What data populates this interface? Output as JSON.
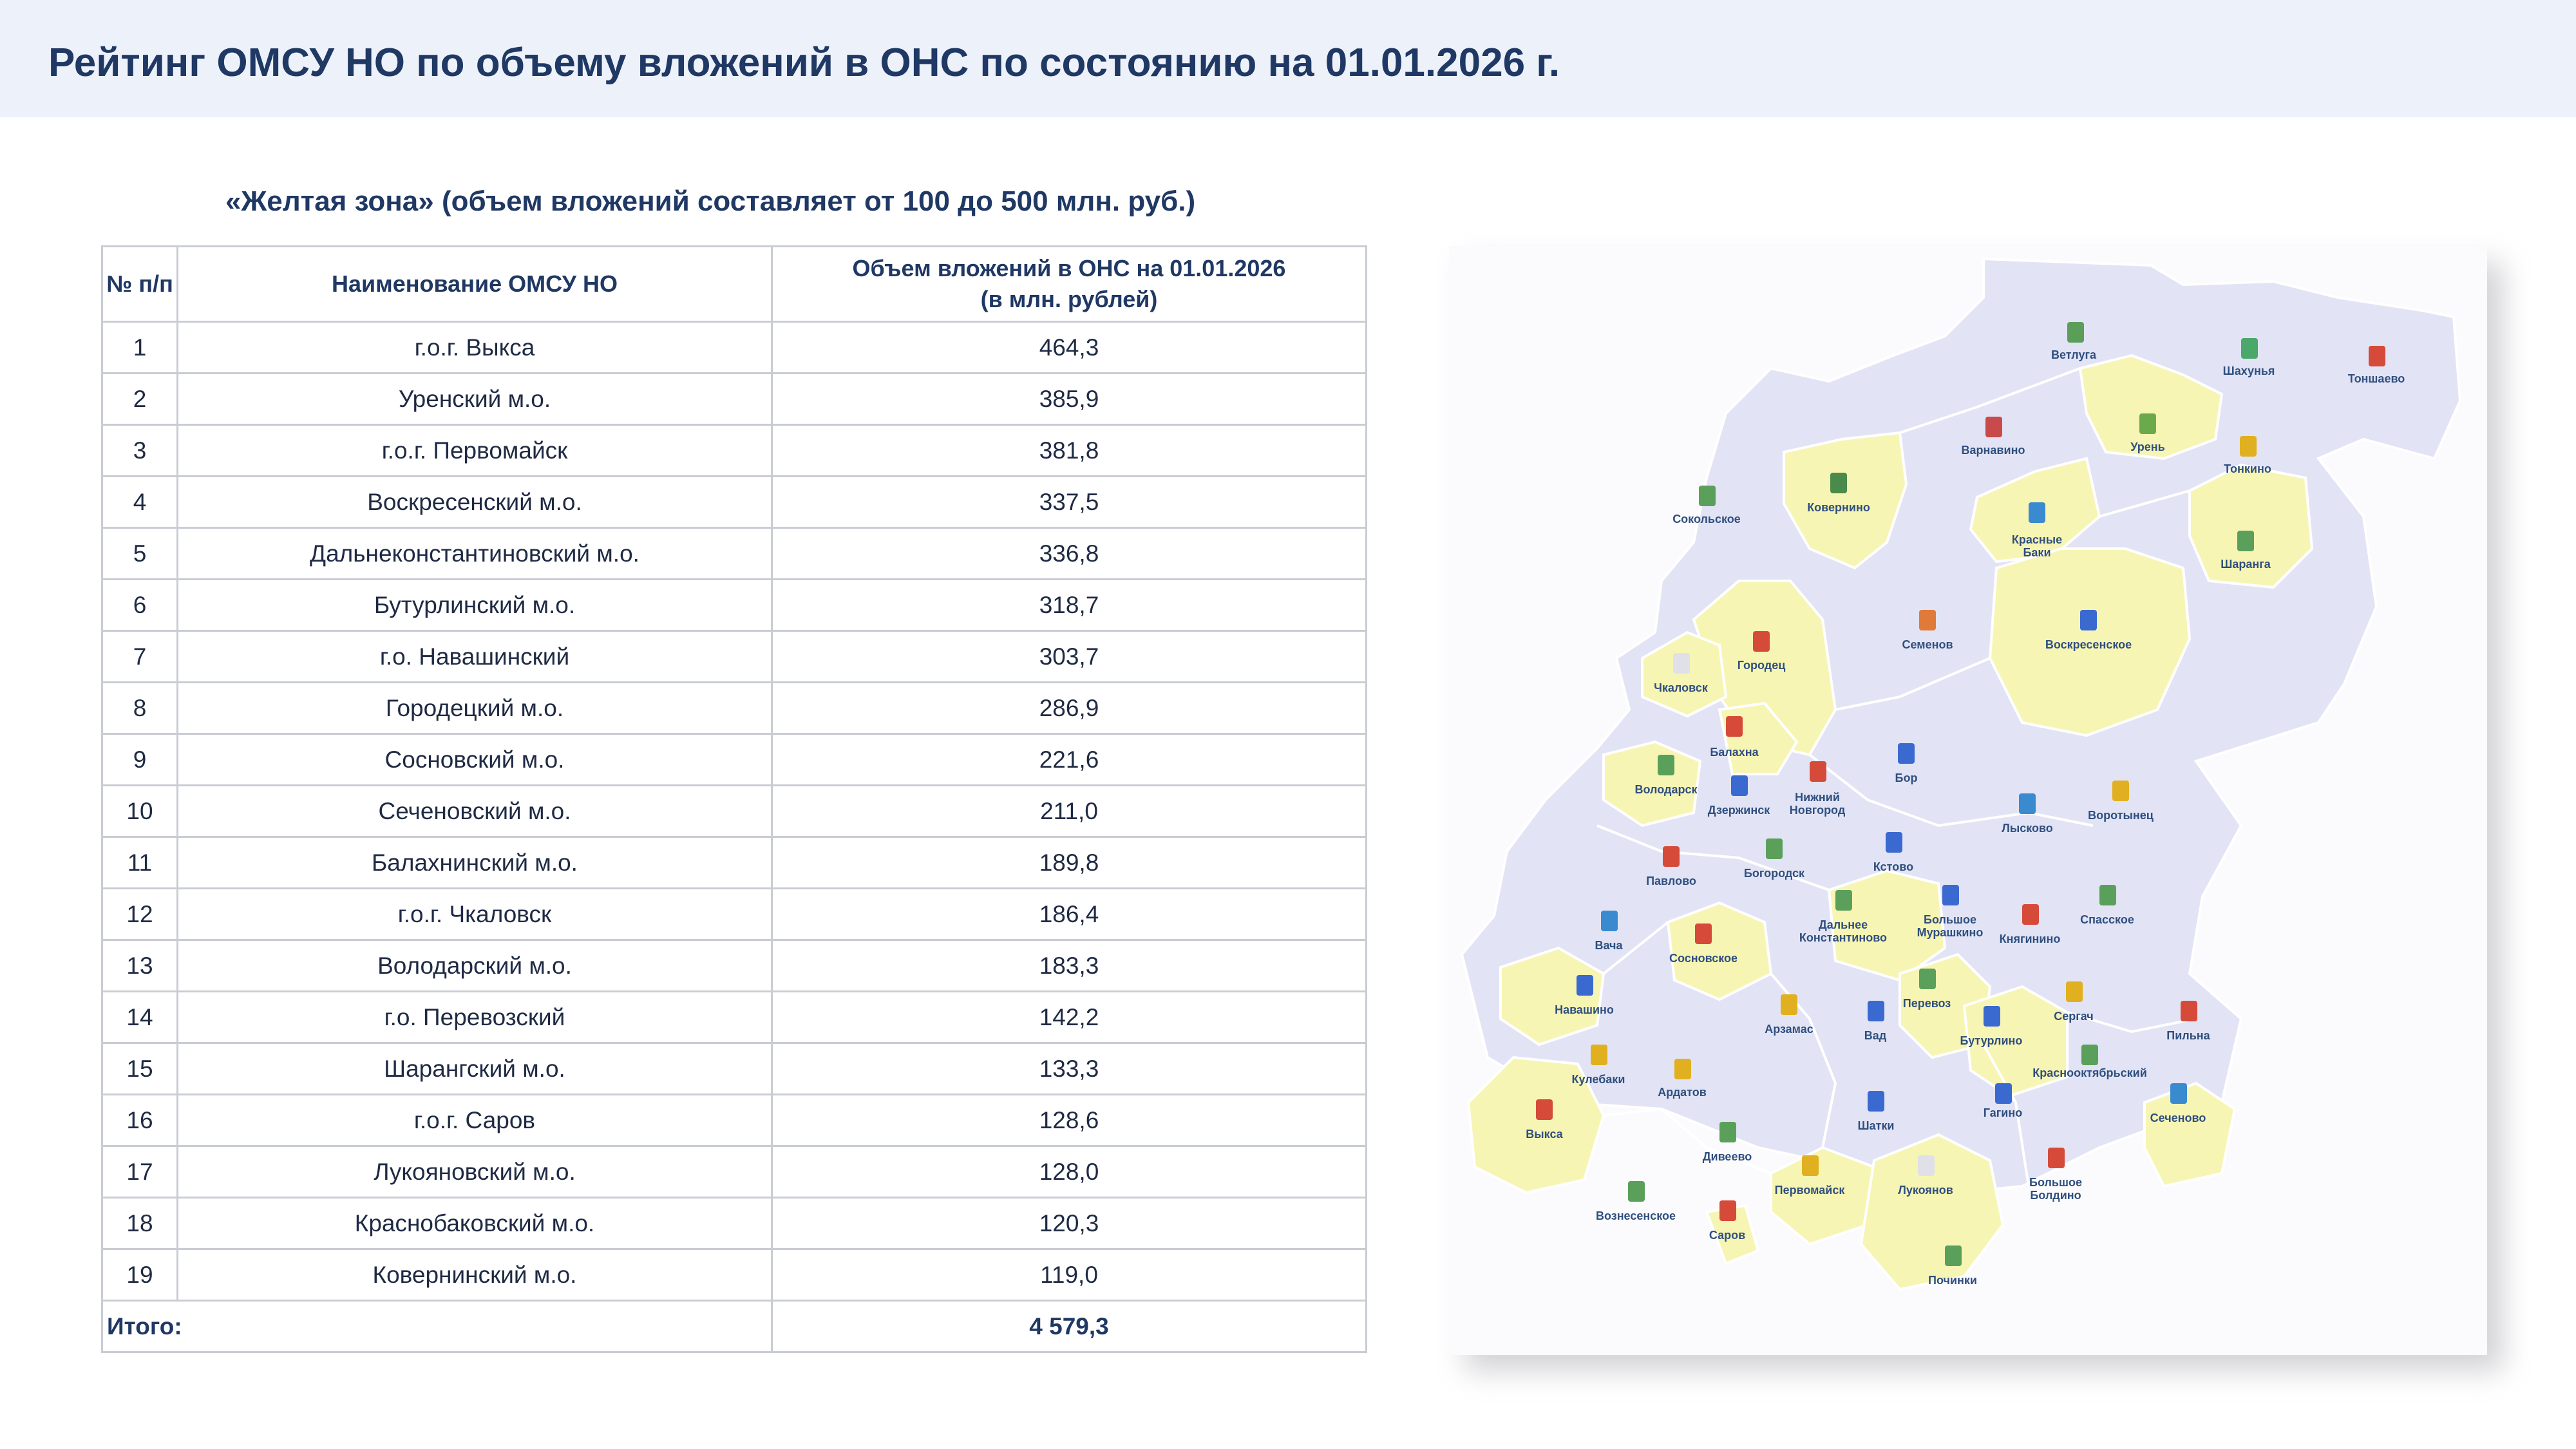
{
  "header": {
    "title": "Рейтинг ОМСУ НО по объему вложений в ОНС по состоянию на 01.01.2026 г."
  },
  "subtitle": "«Желтая зона» (объем вложений составляет от 100 до 500 млн. руб.)",
  "table": {
    "col_num": "№ п/п",
    "col_name": "Наименование ОМСУ НО",
    "col_value_line1": "Объем вложений в ОНС на 01.01.2026",
    "col_value_line2": "(в млн. рублей)",
    "rows": [
      {
        "num": "1",
        "name": "г.о.г. Выкса",
        "value": "464,3"
      },
      {
        "num": "2",
        "name": "Уренский м.о.",
        "value": "385,9"
      },
      {
        "num": "3",
        "name": "г.о.г. Первомайск",
        "value": "381,8"
      },
      {
        "num": "4",
        "name": "Воскресенский м.о.",
        "value": "337,5"
      },
      {
        "num": "5",
        "name": "Дальнеконстантиновский м.о.",
        "value": "336,8"
      },
      {
        "num": "6",
        "name": "Бутурлинский м.о.",
        "value": "318,7"
      },
      {
        "num": "7",
        "name": "г.о. Навашинский",
        "value": "303,7"
      },
      {
        "num": "8",
        "name": "Городецкий м.о.",
        "value": "286,9"
      },
      {
        "num": "9",
        "name": "Сосновский м.о.",
        "value": "221,6"
      },
      {
        "num": "10",
        "name": "Сеченовский м.о.",
        "value": "211,0"
      },
      {
        "num": "11",
        "name": "Балахнинский м.о.",
        "value": "189,8"
      },
      {
        "num": "12",
        "name": "г.о.г. Чкаловск",
        "value": "186,4"
      },
      {
        "num": "13",
        "name": "Володарский м.о.",
        "value": "183,3"
      },
      {
        "num": "14",
        "name": "г.о. Перевозский",
        "value": "142,2"
      },
      {
        "num": "15",
        "name": "Шарангский м.о.",
        "value": "133,3"
      },
      {
        "num": "16",
        "name": "г.о.г. Саров",
        "value": "128,6"
      },
      {
        "num": "17",
        "name": "Лукояновский м.о.",
        "value": "128,0"
      },
      {
        "num": "18",
        "name": "Краснобаковский м.о.",
        "value": "120,3"
      },
      {
        "num": "19",
        "name": "Ковернинский м.о.",
        "value": "119,0"
      }
    ],
    "total_label": "Итого:",
    "total_value": "4 579,3"
  },
  "map": {
    "colors": {
      "yellow_zone": "#f7f5b4",
      "other_zone": "#e2e4f5",
      "border": "#ffffff",
      "label": "#2f4f7f"
    },
    "labels": {
      "vetluga": "Ветлуга",
      "shakhunya": "Шахунья",
      "tonshaevo": "Тоншаево",
      "varnavino": "Варнавино",
      "uren": "Урень",
      "tonkino": "Тонкино",
      "sokolskoe": "Сокольское",
      "koverino": "Ковернино",
      "krasnye1": "Красные",
      "krasnye2": "Баки",
      "sharanga": "Шаранга",
      "gorodets": "Городец",
      "semenov": "Семенов",
      "voskresenskoe": "Воскресенское",
      "chkalovsk": "Чкаловск",
      "balakhna": "Балахна",
      "volodarsk": "Володарск",
      "dzerzhinsk": "Дзержинск",
      "nn1": "Нижний",
      "nn2": "Новгород",
      "bor": "Бор",
      "lyskovo": "Лысково",
      "vorotynets": "Воротынец",
      "pavlovo": "Павлово",
      "bogorodsk": "Богородск",
      "kstovo": "Кстово",
      "bm1": "Большое",
      "bm2": "Мурашкино",
      "knyaginino": "Княгинино",
      "spasskoe": "Спасское",
      "vacha": "Вача",
      "sosnovskoe": "Сосновское",
      "dk1": "Дальнее",
      "dk2": "Константиново",
      "navashino": "Навашино",
      "arzamas": "Арзамас",
      "vad": "Вад",
      "perevoz": "Перевоз",
      "buturlino": "Бутурлино",
      "sergach": "Сергач",
      "pilna": "Пильна",
      "kulebaki": "Кулебаки",
      "ardatov": "Ардатов",
      "krasnooktyabrsky": "Краснооктябрьский",
      "vyksa": "Выкса",
      "shatki": "Шатки",
      "gagino": "Гагино",
      "sechenovo": "Сеченово",
      "diveevo": "Дивеево",
      "pervomaysk": "Первомайск",
      "lukoyanov": "Лукоянов",
      "bb1": "Большое",
      "bb2": "Болдино",
      "voznesenskoe": "Вознесенское",
      "sarov": "Саров",
      "pochinki": "Починки"
    }
  }
}
